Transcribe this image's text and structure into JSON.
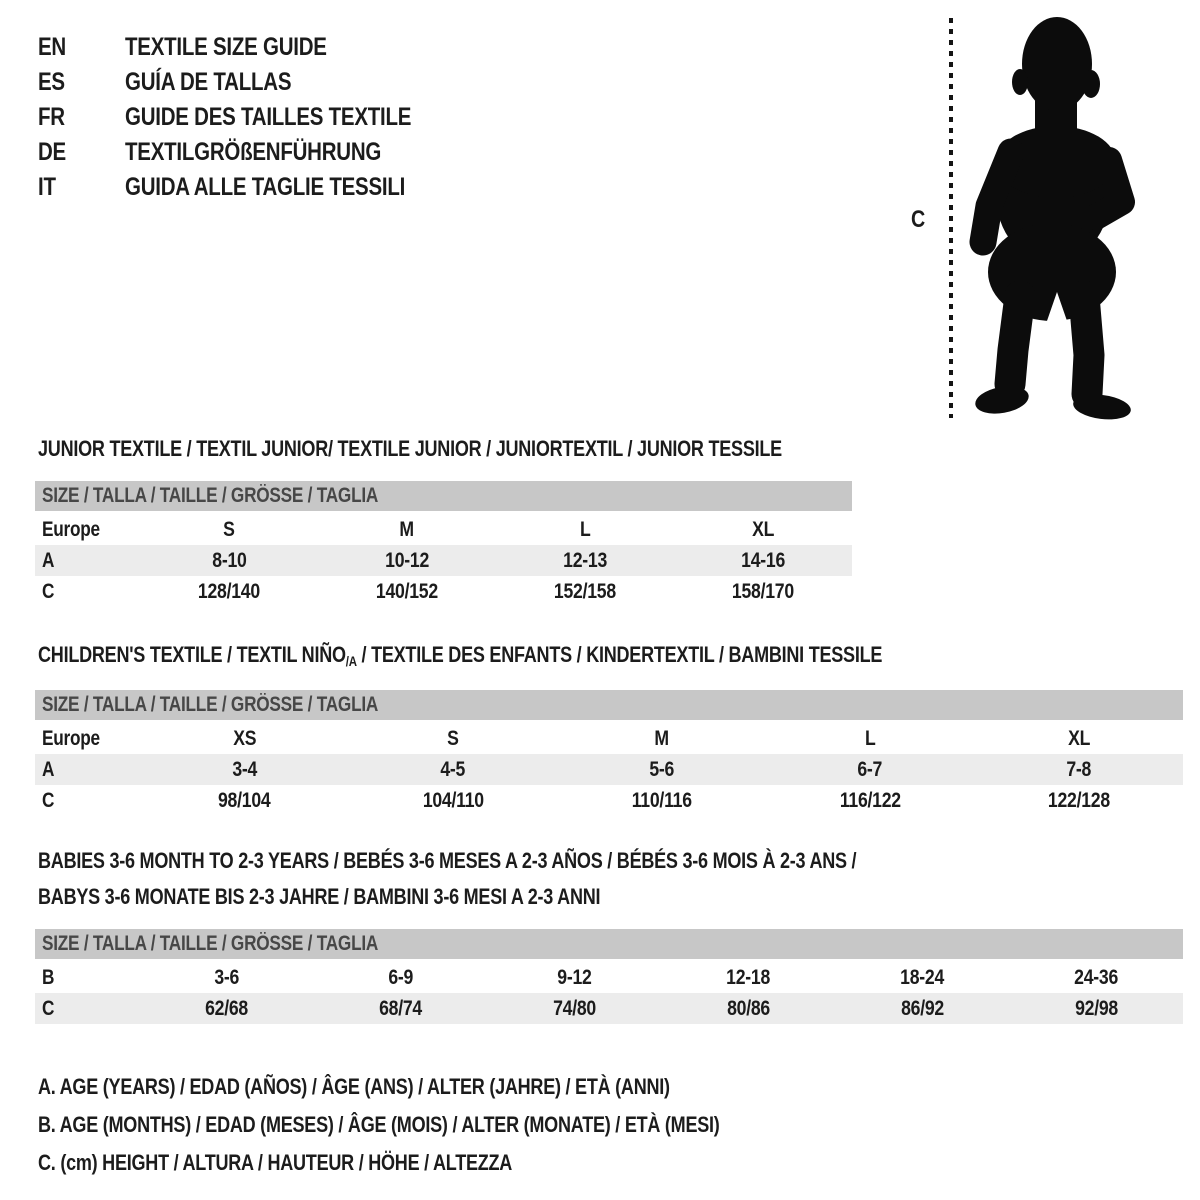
{
  "language_guide": {
    "items": [
      {
        "code": "EN",
        "label": "TEXTILE SIZE GUIDE"
      },
      {
        "code": "ES",
        "label": "GUÍA DE TALLAS"
      },
      {
        "code": "FR",
        "label": "GUIDE DES TAILLES TEXTILE"
      },
      {
        "code": "DE",
        "label": "TEXTILGRÖßENFÜHRUNG"
      },
      {
        "code": "IT",
        "label": "GUIDA ALLE TAGLIE TESSILI"
      }
    ]
  },
  "figure": {
    "icon": "toddler-silhouette",
    "measure_label": "C"
  },
  "junior": {
    "title": "JUNIOR TEXTILE / TEXTIL JUNIOR/ TEXTILE JUNIOR / JUNIORTEXTIL / JUNIOR TESSILE",
    "size_header": "SIZE / TALLA / TAILLE / GRÖSSE / TAGLIA",
    "rows": [
      {
        "label": "Europe",
        "values": [
          "S",
          "M",
          "L",
          "XL"
        ]
      },
      {
        "label": "A",
        "values": [
          "8-10",
          "10-12",
          "12-13",
          "14-16"
        ]
      },
      {
        "label": "C",
        "values": [
          "128/140",
          "140/152",
          "152/158",
          "158/170"
        ]
      }
    ]
  },
  "children": {
    "title_prefix": "CHILDREN'S TEXTILE / TEXTIL NIÑO",
    "title_sub": "/A",
    "title_suffix": " / TEXTILE DES ENFANTS / KINDERTEXTIL / BAMBINI TESSILE",
    "size_header": "SIZE / TALLA / TAILLE / GRÖSSE / TAGLIA",
    "rows": [
      {
        "label": "Europe",
        "values": [
          "XS",
          "S",
          "M",
          "L",
          "XL"
        ]
      },
      {
        "label": "A",
        "values": [
          "3-4",
          "4-5",
          "5-6",
          "6-7",
          "7-8"
        ]
      },
      {
        "label": "C",
        "values": [
          "98/104",
          "104/110",
          "110/116",
          "116/122",
          "122/128"
        ]
      }
    ]
  },
  "babies": {
    "title_line1": "BABIES 3-6 MONTH TO 2-3 YEARS / BEBÉS 3-6 MESES A 2-3 AÑOS / BÉBÉS 3-6 MOIS À 2-3 ANS /",
    "title_line2": "BABYS 3-6 MONATE BIS 2-3 JAHRE / BAMBINI 3-6 MESI A 2-3 ANNI",
    "size_header": "SIZE / TALLA / TAILLE / GRÖSSE / TAGLIA",
    "rows": [
      {
        "label": "B",
        "values": [
          "3-6",
          "6-9",
          "9-12",
          "12-18",
          "18-24",
          "24-36"
        ]
      },
      {
        "label": "C",
        "values": [
          "62/68",
          "68/74",
          "74/80",
          "80/86",
          "86/92",
          "92/98"
        ]
      }
    ]
  },
  "legend": {
    "lines": [
      "A. AGE (YEARS) / EDAD (AÑOS) / ÂGE (ANS) / ALTER (JAHRE) / ETÀ (ANNI)",
      "B. AGE (MONTHS) / EDAD (MESES) / ÂGE (MOIS) / ALTER (MONATE) / ETÀ (MESI)",
      "C. (cm) HEIGHT / ALTURA / HAUTEUR / HÖHE / ALTEZZA"
    ]
  },
  "colors": {
    "header_bar": "#c7c7c7",
    "row_alt": "#ececec",
    "silhouette": "#0c0c0c",
    "text": "#1c1c1c"
  }
}
